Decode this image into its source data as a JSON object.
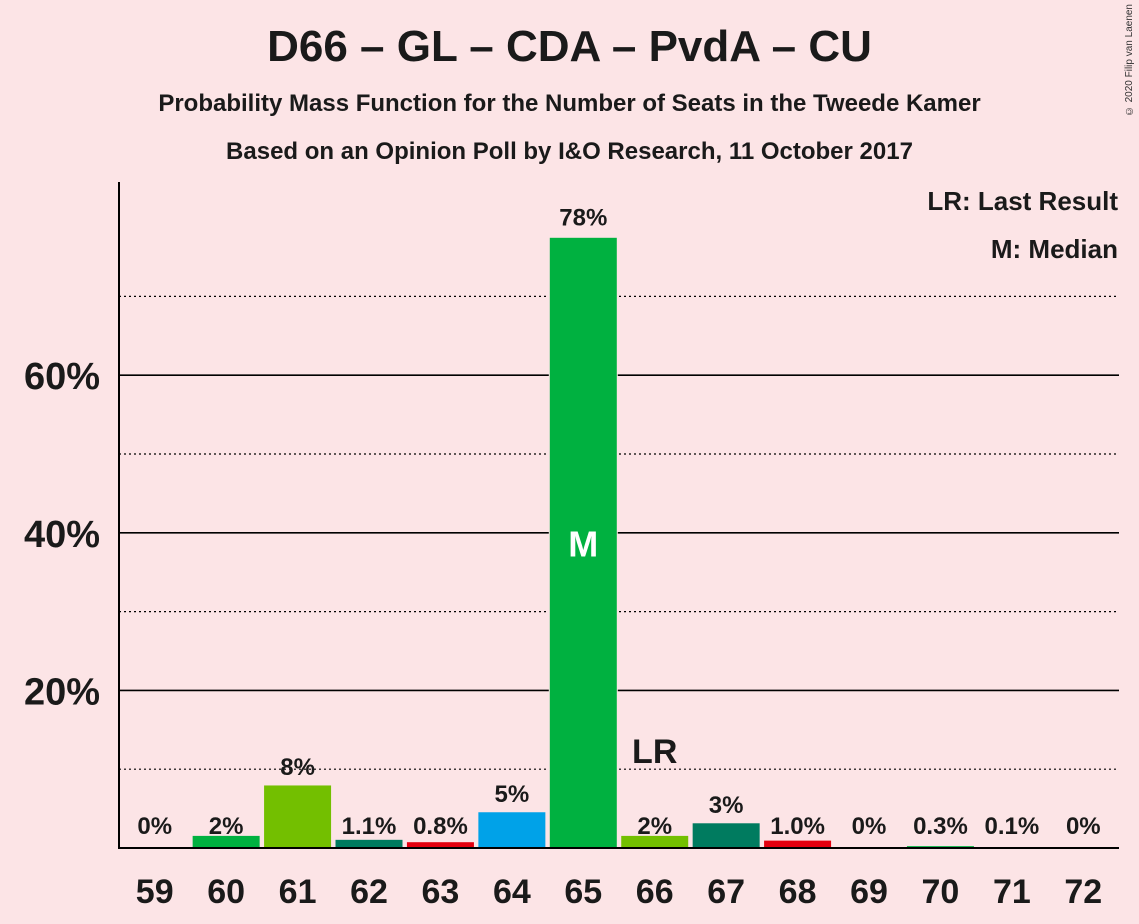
{
  "title": "D66 – GL – CDA – PvdA – CU",
  "subtitle": "Probability Mass Function for the Number of Seats in the Tweede Kamer",
  "subtitle2": "Based on an Opinion Poll by I&O Research, 11 October 2017",
  "copyright": "© 2020 Filip van Laenen",
  "legend": {
    "last_result": "LR: Last Result",
    "median": "M: Median"
  },
  "chart_data": {
    "type": "bar",
    "categories": [
      "59",
      "60",
      "61",
      "62",
      "63",
      "64",
      "65",
      "66",
      "67",
      "68",
      "69",
      "70",
      "71",
      "72"
    ],
    "values": [
      0,
      1.6,
      8.0,
      1.1,
      0.8,
      4.6,
      77.5,
      1.6,
      3.2,
      1.0,
      0,
      0.3,
      0.1,
      0
    ],
    "labels": [
      "0%",
      "2%",
      "8%",
      "1.1%",
      "0.8%",
      "5%",
      "78%",
      "2%",
      "3%",
      "1.0%",
      "0%",
      "0.3%",
      "0.1%",
      "0%"
    ],
    "colors": [
      "#00B140",
      "#00B140",
      "#73BF00",
      "#007B5F",
      "#E3000F",
      "#00A2E8",
      "#00B140",
      "#73BF00",
      "#007B5F",
      "#E3000F",
      "#00B140",
      "#00B140",
      "#00B140",
      "#00B140"
    ],
    "ylim": [
      0,
      85
    ],
    "yticks": [
      {
        "value": 20,
        "label": "20%"
      },
      {
        "value": 40,
        "label": "40%"
      },
      {
        "value": 60,
        "label": "60%"
      }
    ],
    "minor_gridlines": [
      10,
      30,
      50,
      70
    ],
    "median_category": "65",
    "median_label": "M",
    "last_result_category": "66",
    "last_result_label": "LR",
    "grid": true,
    "legend_placement": "top-right"
  }
}
